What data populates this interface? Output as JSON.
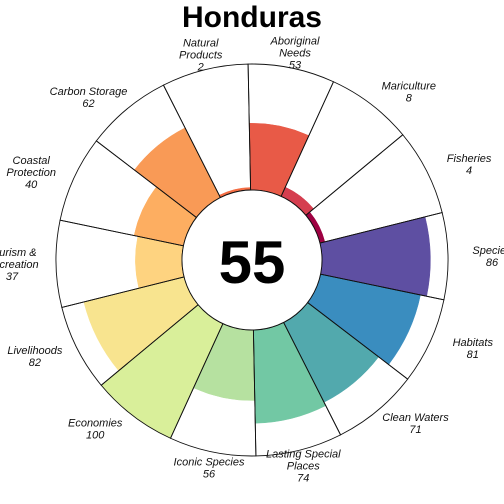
{
  "chart_data": {
    "type": "polar-bar",
    "title": "Honduras",
    "overall_score": "55",
    "max_value": 100,
    "goals": [
      {
        "name": "Fisheries",
        "value": 4,
        "color": "#9E0142"
      },
      {
        "name": "Mariculture",
        "value": 8,
        "color": "#D53E4F"
      },
      {
        "name": "Aboriginal Needs",
        "value": 53,
        "color": "#E85A47"
      },
      {
        "name": "Natural Products",
        "value": 2,
        "color": "#F46D43"
      },
      {
        "name": "Carbon Storage",
        "value": 62,
        "color": "#F99A56"
      },
      {
        "name": "Coastal Protection",
        "value": 40,
        "color": "#FDAE61"
      },
      {
        "name": "Tourism & Recreation",
        "value": 37,
        "color": "#FED380"
      },
      {
        "name": "Livelihoods",
        "value": 82,
        "color": "#F8E48F"
      },
      {
        "name": "Economies",
        "value": 100,
        "color": "#D9EF9A"
      },
      {
        "name": "Iconic Species",
        "value": 56,
        "color": "#B6E1A0"
      },
      {
        "name": "Lasting Special Places",
        "value": 74,
        "color": "#72C8A4"
      },
      {
        "name": "Clean Waters",
        "value": 71,
        "color": "#52A9AD"
      },
      {
        "name": "Habitats",
        "value": 81,
        "color": "#3A8DBF"
      },
      {
        "name": "Species",
        "value": 86,
        "color": "#5E4FA2"
      }
    ]
  }
}
